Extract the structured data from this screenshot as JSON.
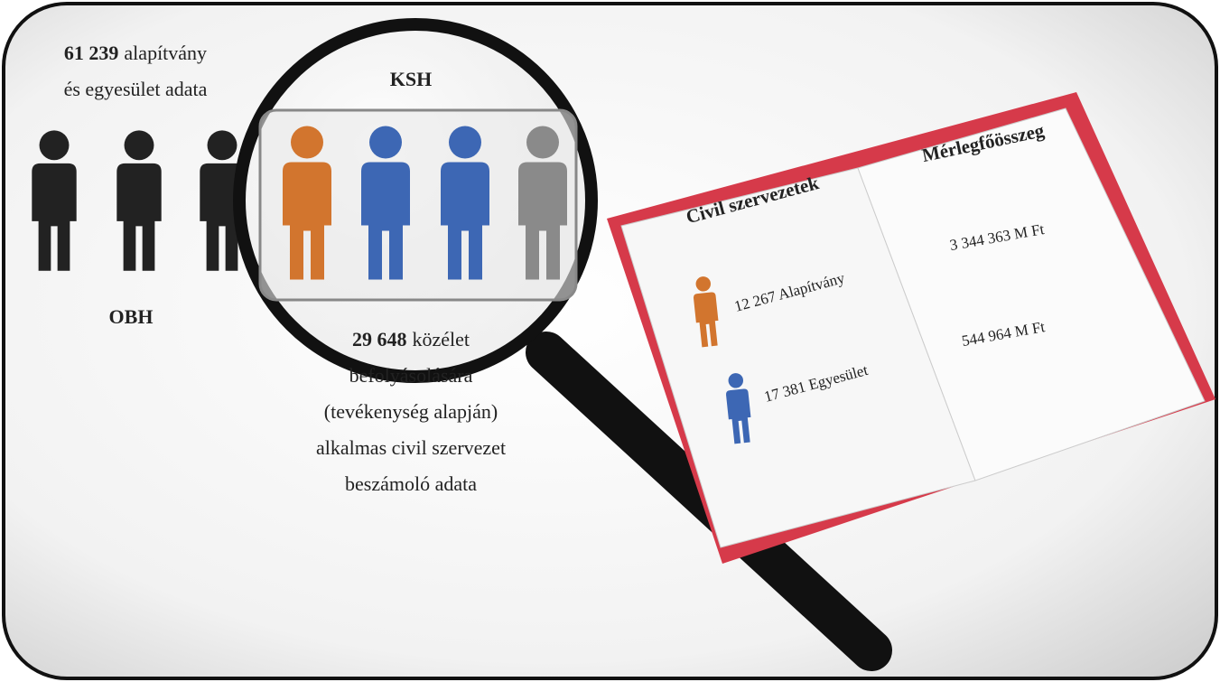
{
  "left": {
    "count": "61 239",
    "text_lines": [
      "alapítvány",
      "és egyesület adata"
    ],
    "label": "OBH"
  },
  "magnifier": {
    "label": "KSH",
    "count": "29 648",
    "text_lines": [
      "közélet",
      "befolyásolására",
      "(tevékenység alapján)",
      "alkalmas civil szervezet",
      "beszámoló adata"
    ]
  },
  "book": {
    "left_heading": "Civil szervezetek",
    "right_heading": "Mérlegfőösszeg",
    "rows": [
      {
        "label": "12 267 Alapítvány",
        "value": "3 344 363 M Ft"
      },
      {
        "label": "17 381 Egyesület",
        "value": "544 964 M Ft"
      }
    ]
  }
}
